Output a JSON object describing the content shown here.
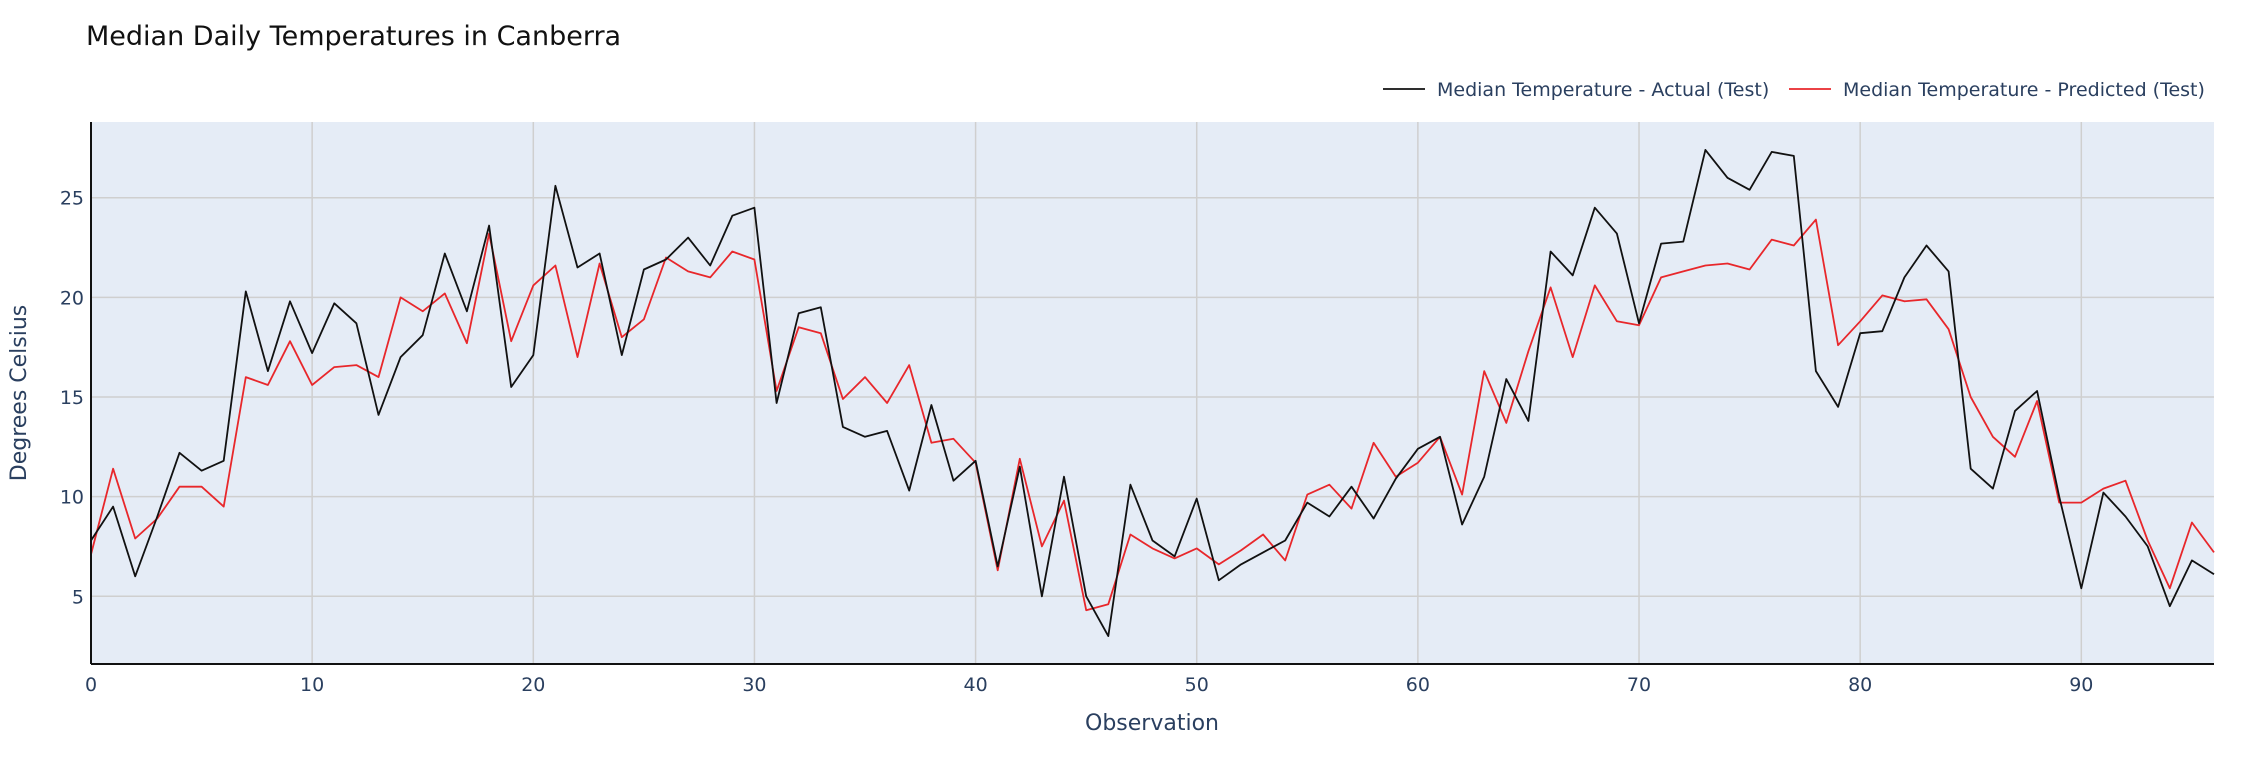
{
  "chart_data": {
    "type": "line",
    "title": "Median Daily Temperatures in Canberra",
    "xlabel": "Observation",
    "ylabel": "Degrees Celsius",
    "xlim": [
      0,
      96
    ],
    "ylim": [
      1.6,
      28.8
    ],
    "x_ticks": [
      0,
      10,
      20,
      30,
      40,
      50,
      60,
      70,
      80,
      90
    ],
    "y_ticks": [
      5,
      10,
      15,
      20,
      25
    ],
    "grid": true,
    "legend_position": "top-right",
    "series": [
      {
        "name": "Median Temperature - Actual (Test)",
        "color": "#111111",
        "values": [
          7.8,
          9.5,
          6.0,
          9.0,
          12.2,
          11.3,
          11.8,
          20.3,
          16.3,
          19.8,
          17.2,
          19.7,
          18.7,
          14.1,
          17.0,
          18.1,
          22.2,
          19.3,
          23.6,
          15.5,
          17.1,
          25.6,
          21.5,
          22.2,
          17.1,
          21.4,
          21.9,
          23.0,
          21.6,
          24.1,
          24.5,
          14.7,
          19.2,
          19.5,
          13.5,
          13.0,
          13.3,
          10.3,
          14.6,
          10.8,
          11.8,
          6.5,
          11.5,
          5.0,
          11.0,
          5.0,
          3.0,
          10.6,
          7.8,
          7.0,
          9.9,
          5.8,
          6.6,
          7.2,
          7.8,
          9.7,
          9.0,
          10.5,
          8.9,
          10.9,
          12.4,
          13.0,
          8.6,
          11.0,
          15.9,
          13.8,
          22.3,
          21.1,
          24.5,
          23.2,
          18.7,
          22.7,
          22.8,
          27.4,
          26.0,
          25.4,
          27.3,
          27.1,
          16.3,
          14.5,
          18.2,
          18.3,
          21.0,
          22.6,
          21.3,
          11.4,
          10.4,
          14.3,
          15.3,
          10.0,
          5.4,
          10.2,
          9.0,
          7.5,
          4.5,
          6.8,
          6.1
        ]
      },
      {
        "name": "Median Temperature - Predicted (Test)",
        "color": "#e8272b",
        "values": [
          7.1,
          11.4,
          7.9,
          8.9,
          10.5,
          10.5,
          9.5,
          16.0,
          15.6,
          17.8,
          15.6,
          16.5,
          16.6,
          16.0,
          20.0,
          19.3,
          20.2,
          17.7,
          23.2,
          17.8,
          20.6,
          21.6,
          17.0,
          21.7,
          18.0,
          18.9,
          22.0,
          21.3,
          21.0,
          22.3,
          21.9,
          15.3,
          18.5,
          18.2,
          14.9,
          16.0,
          14.7,
          16.6,
          12.7,
          12.9,
          11.7,
          6.3,
          11.9,
          7.5,
          9.8,
          4.3,
          4.6,
          8.1,
          7.4,
          6.9,
          7.4,
          6.6,
          7.3,
          8.1,
          6.8,
          10.1,
          10.6,
          9.4,
          12.7,
          11.0,
          11.7,
          13.0,
          10.1,
          16.3,
          13.7,
          17.3,
          20.5,
          17.0,
          20.6,
          18.8,
          18.6,
          21.0,
          21.3,
          21.6,
          21.7,
          21.4,
          22.9,
          22.6,
          23.9,
          17.6,
          18.8,
          20.1,
          19.8,
          19.9,
          18.4,
          15.0,
          13.0,
          12.0,
          14.8,
          9.7,
          9.7,
          10.4,
          10.8,
          7.8,
          5.4,
          8.7,
          7.2
        ]
      }
    ]
  }
}
